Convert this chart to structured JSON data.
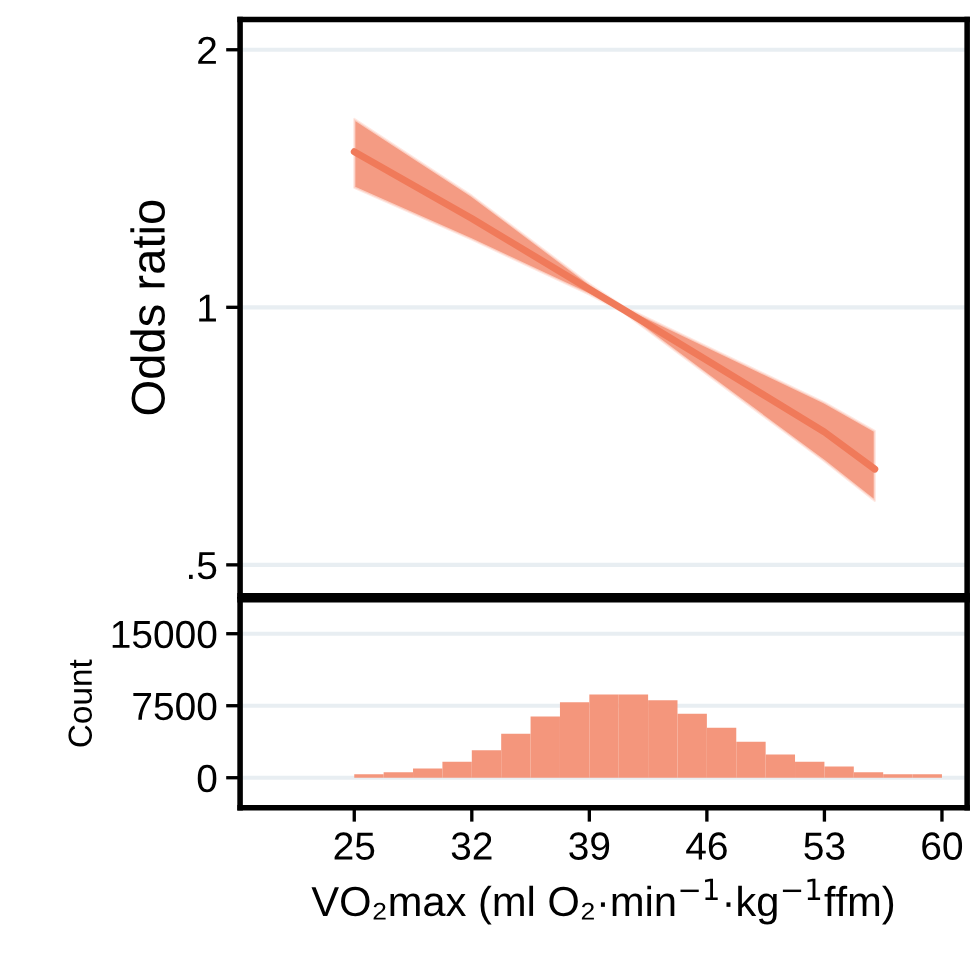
{
  "chart_data": [
    {
      "type": "line",
      "ylabel": "Odds ratio",
      "log": "y",
      "xlim": [
        18.2,
        61.5
      ],
      "ylim": [
        0.46,
        2.17
      ],
      "xticks": [
        25,
        32,
        39,
        46,
        53,
        60
      ],
      "yticks": [
        {
          "value": 0.5,
          "label": ".5"
        },
        1,
        2
      ],
      "grid": "y",
      "tick_labels": "y",
      "series": [
        {
          "color": "#f07a5a",
          "x": [
            25,
            32,
            39,
            41,
            46,
            53,
            56
          ],
          "values": [
            1.52,
            1.27,
            1.05,
            0.995,
            0.867,
            0.715,
            0.647
          ],
          "upper": [
            1.66,
            1.35,
            1.065,
            1.003,
            0.9,
            0.774,
            0.717
          ],
          "lower": [
            1.38,
            1.2,
            1.035,
            0.987,
            0.835,
            0.661,
            0.594
          ]
        }
      ]
    },
    {
      "type": "histogram",
      "ylabel": "Count",
      "xlabel": "VO₂max (ml O₂·min$^{−1}$·kg$^{−1}$ffm)",
      "xlim": [
        18.2,
        61.5
      ],
      "ylim": [
        -3125,
        18540
      ],
      "xticks": [
        25,
        32,
        39,
        46,
        53,
        60
      ],
      "yticks": [
        0,
        7500,
        15000
      ],
      "grid": "y",
      "color": "#f4967c",
      "bins": [
        25,
        26.75,
        28.5,
        30.25,
        32,
        33.75,
        35.5,
        37.25,
        39,
        40.75,
        42.5,
        44.25,
        46,
        47.75,
        49.5,
        51.25,
        53,
        54.75,
        56.5,
        58.25,
        60
      ],
      "values": [
        350,
        560,
        970,
        1670,
        2850,
        4580,
        6390,
        7850,
        8680,
        8680,
        8060,
        6670,
        5210,
        3750,
        2430,
        1670,
        1180,
        560,
        350,
        350
      ]
    }
  ]
}
